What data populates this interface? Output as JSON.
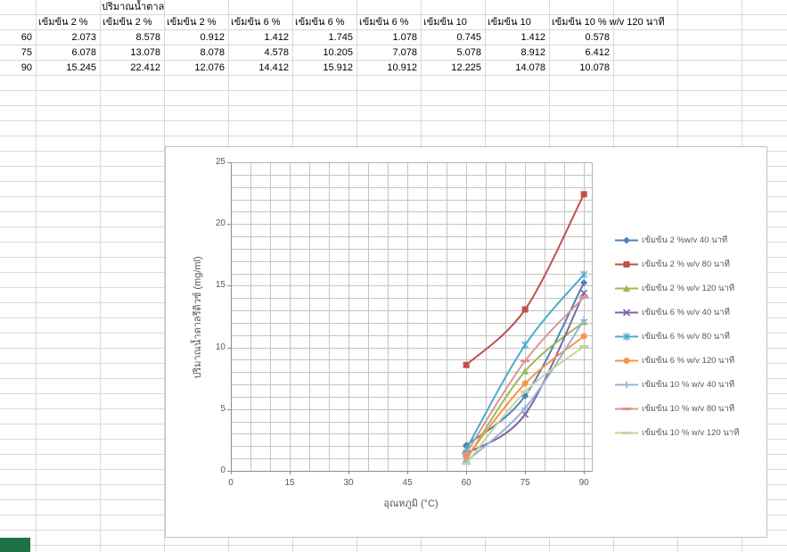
{
  "sheet": {
    "title_cell": "ปริมาณน้ำตาล",
    "column_headers": [
      "เข้มข้น 2 %",
      "เข้มข้น 2 %",
      "เข้มข้น 2 %",
      "เข้มข้น 6 %",
      "เข้มข้น 6 %",
      "เข้มข้น 6 %",
      "เข้มข้น 10 ",
      "เข้มข้น 10 ",
      "เข้มข้น 10 % w/v  120 นาที"
    ],
    "row_labels": [
      "60",
      "75",
      "90"
    ],
    "rows": [
      [
        "2.073",
        "8.578",
        "0.912",
        "1.412",
        "1.745",
        "1.078",
        "0.745",
        "1.412",
        "0.578"
      ],
      [
        "6.078",
        "13.078",
        "8.078",
        "4.578",
        "10.205",
        "7.078",
        "5.078",
        "8.912",
        "6.412"
      ],
      [
        "15.245",
        "22.412",
        "12.076",
        "14.412",
        "15.912",
        "10.912",
        "12.225",
        "14.078",
        "10.078"
      ]
    ],
    "corner_cell_color": "#1e7145"
  },
  "chart_data": {
    "type": "scatter",
    "line_style": "smooth",
    "x": [
      60,
      75,
      90
    ],
    "series": [
      {
        "name": "เข้มข้น 2 %w/v  40 นาที",
        "color": "#4F81BD",
        "marker": "diamond",
        "values": [
          2.073,
          6.078,
          15.245
        ]
      },
      {
        "name": "เข้มข้น 2 % w/v  80 นาที",
        "color": "#C0504D",
        "marker": "square",
        "values": [
          8.578,
          13.078,
          22.412
        ]
      },
      {
        "name": "เข้มข้น 2 % w/v  120 นาที",
        "color": "#9BBB59",
        "marker": "triangle",
        "values": [
          0.912,
          8.078,
          12.076
        ]
      },
      {
        "name": "เข้มข้น 6 % w/v  40 นาที",
        "color": "#8064A2",
        "marker": "x",
        "values": [
          1.412,
          4.578,
          14.412
        ]
      },
      {
        "name": "เข้มข้น 6 % w/v  80 นาที",
        "color": "#4BACC6",
        "marker": "star",
        "values": [
          1.745,
          10.205,
          15.912
        ]
      },
      {
        "name": "เข้มข้น 6 % w/v  120 นาที",
        "color": "#F79646",
        "marker": "circle",
        "values": [
          1.078,
          7.078,
          10.912
        ]
      },
      {
        "name": "เข้มข้น 10 % w/v  40 นาที",
        "color": "#95B3D7",
        "marker": "plus",
        "values": [
          0.745,
          5.078,
          12.225
        ]
      },
      {
        "name": "เข้มข้น 10 % w/v  80 นาที",
        "color": "#D99694",
        "marker": "dash",
        "values": [
          1.412,
          8.912,
          14.078
        ]
      },
      {
        "name": "เข้มข้น 10 % w/v  120 นาที",
        "color": "#C3D69B",
        "marker": "dash",
        "values": [
          0.578,
          6.412,
          10.078
        ]
      }
    ],
    "xlabel": "อุณหภูมิ (°C)",
    "ylabel": "ปริมาณน้ำตาลรีดิวซ์ (mg/ml)",
    "xlim": [
      0,
      92
    ],
    "ylim": [
      0,
      25
    ],
    "xticks": [
      0,
      15,
      30,
      45,
      60,
      75,
      90
    ],
    "yticks": [
      0,
      5,
      10,
      15,
      20,
      25
    ],
    "grid": {
      "on": true,
      "vertical_step": 5,
      "horizontal_step": 1
    },
    "legend_position": "right"
  }
}
